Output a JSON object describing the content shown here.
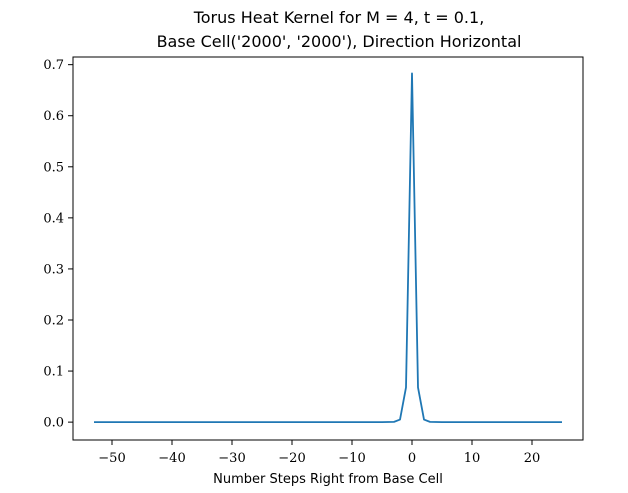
{
  "chart_data": {
    "type": "line",
    "title_lines": [
      "Torus Heat Kernel for M = 4, t = 0.1,",
      "Base Cell('2000', '2000'), Direction Horizontal"
    ],
    "xlabel": "Number Steps Right from Base Cell",
    "ylabel": "",
    "xlim": [
      -56.5,
      28.5
    ],
    "ylim": [
      -0.035,
      0.715
    ],
    "xticks": [
      -50,
      -40,
      -30,
      -20,
      -10,
      0,
      10,
      20
    ],
    "xtick_labels": [
      "−50",
      "−40",
      "−30",
      "−20",
      "−10",
      "0",
      "10",
      "20"
    ],
    "yticks": [
      0.0,
      0.1,
      0.2,
      0.3,
      0.4,
      0.5,
      0.6,
      0.7
    ],
    "ytick_labels": [
      "0.0",
      "0.1",
      "0.2",
      "0.3",
      "0.4",
      "0.5",
      "0.6",
      "0.7"
    ],
    "grid": false,
    "legend": "none",
    "line_color": "#1f77b4",
    "series": [
      {
        "x": [
          -53,
          -50,
          -45,
          -40,
          -35,
          -30,
          -25,
          -20,
          -15,
          -10,
          -5,
          -3,
          -2,
          -1,
          0,
          1,
          2,
          3,
          5,
          10,
          15,
          20,
          25
        ],
        "y": [
          0,
          0,
          0,
          0,
          0,
          0,
          0,
          0,
          0,
          0,
          0,
          0.0005,
          0.005,
          0.068,
          0.683,
          0.068,
          0.005,
          0.0005,
          0,
          0,
          0,
          0,
          0
        ]
      }
    ]
  }
}
